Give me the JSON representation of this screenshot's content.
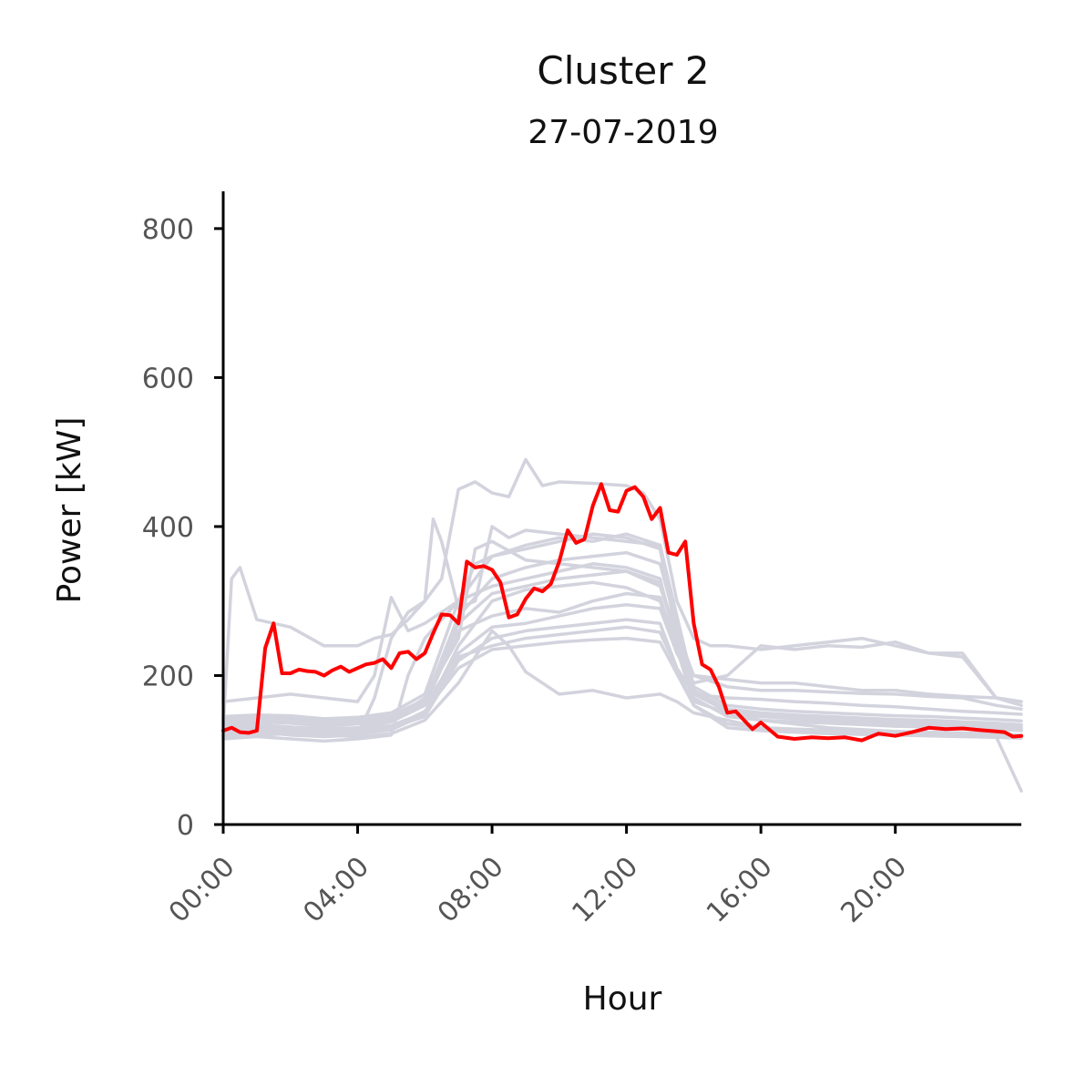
{
  "chart_data": {
    "type": "line",
    "title": "Cluster 2",
    "subtitle": "27-07-2019",
    "xlabel": "Hour",
    "ylabel": "Power [kW]",
    "x_range_hours": [
      0,
      23.75
    ],
    "ylim": [
      0,
      850
    ],
    "x_ticks": [
      "00:00",
      "04:00",
      "08:00",
      "12:00",
      "16:00",
      "20:00"
    ],
    "y_ticks": [
      "0",
      "200",
      "400",
      "600",
      "800"
    ],
    "grid": false,
    "colors": {
      "highlight": "#ff0000",
      "background_series": "#d3d3de",
      "axis": "#000000",
      "tick_label": "#555555"
    },
    "highlight_series": {
      "x_hours": [
        0.0,
        0.25,
        0.5,
        0.75,
        1.0,
        1.25,
        1.5,
        1.75,
        2.0,
        2.25,
        2.5,
        2.75,
        3.0,
        3.25,
        3.5,
        3.75,
        4.0,
        4.25,
        4.5,
        4.75,
        5.0,
        5.25,
        5.5,
        5.75,
        6.0,
        6.25,
        6.5,
        6.75,
        7.0,
        7.25,
        7.5,
        7.75,
        8.0,
        8.25,
        8.5,
        8.75,
        9.0,
        9.25,
        9.5,
        9.75,
        10.0,
        10.25,
        10.5,
        10.75,
        11.0,
        11.25,
        11.5,
        11.75,
        12.0,
        12.25,
        12.5,
        12.75,
        13.0,
        13.25,
        13.5,
        13.75,
        14.0,
        14.25,
        14.5,
        14.75,
        15.0,
        15.25,
        15.5,
        15.75,
        16.0,
        16.5,
        17.0,
        17.5,
        18.0,
        18.5,
        19.0,
        19.5,
        20.0,
        20.5,
        21.0,
        21.5,
        22.0,
        22.5,
        23.0,
        23.25,
        23.5,
        23.75
      ],
      "values": [
        126,
        130,
        124,
        123,
        126,
        237,
        270,
        203,
        203,
        208,
        206,
        205,
        200,
        207,
        212,
        205,
        210,
        215,
        217,
        222,
        210,
        230,
        232,
        222,
        230,
        257,
        282,
        281,
        270,
        353,
        345,
        347,
        342,
        325,
        278,
        282,
        303,
        317,
        313,
        323,
        353,
        395,
        378,
        383,
        428,
        457,
        422,
        420,
        448,
        453,
        440,
        410,
        425,
        365,
        362,
        380,
        270,
        215,
        208,
        185,
        150,
        152,
        140,
        128,
        137,
        118,
        115,
        117,
        116,
        117,
        113,
        122,
        119,
        124,
        130,
        128,
        129,
        127,
        125,
        124,
        118,
        119
      ]
    },
    "background_series": [
      {
        "x_hours": [
          0,
          0.25,
          0.5,
          1,
          2,
          3,
          4,
          4.5,
          5,
          5.5,
          6,
          6.5,
          7,
          7.5,
          8,
          8.5,
          9,
          9.5,
          10,
          11,
          12,
          12.5,
          13,
          13.5,
          14,
          14.5,
          15,
          16,
          17,
          18,
          19,
          20,
          21,
          22,
          23,
          23.75
        ],
        "values": [
          130,
          330,
          345,
          275,
          265,
          240,
          240,
          250,
          255,
          275,
          300,
          330,
          450,
          460,
          445,
          440,
          490,
          455,
          460,
          458,
          455,
          445,
          410,
          300,
          250,
          240,
          240,
          235,
          240,
          245,
          250,
          240,
          230,
          225,
          170,
          165
        ]
      },
      {
        "x_hours": [
          0,
          1,
          2,
          3,
          4,
          4.5,
          5,
          5.5,
          6,
          6.25,
          6.5,
          7,
          7.5,
          8,
          8.5,
          9,
          10,
          11,
          12,
          13,
          13.5,
          14,
          15,
          16,
          17,
          18,
          19,
          20,
          21,
          22,
          23,
          23.75
        ],
        "values": [
          120,
          125,
          120,
          118,
          120,
          170,
          250,
          285,
          300,
          410,
          380,
          290,
          300,
          400,
          385,
          395,
          390,
          385,
          380,
          375,
          260,
          200,
          185,
          180,
          180,
          178,
          176,
          175,
          172,
          170,
          160,
          155
        ]
      },
      {
        "x_hours": [
          0,
          1,
          2,
          3,
          4,
          5,
          5.5,
          6,
          7,
          7.5,
          8,
          9,
          10,
          11,
          12,
          13,
          13.5,
          14,
          15,
          16,
          18,
          20,
          21,
          22,
          23,
          23.75
        ],
        "values": [
          115,
          118,
          115,
          112,
          115,
          120,
          200,
          250,
          300,
          350,
          360,
          370,
          380,
          390,
          385,
          370,
          250,
          180,
          150,
          140,
          130,
          125,
          123,
          120,
          118,
          45
        ]
      },
      {
        "x_hours": [
          0,
          1,
          2,
          3,
          4,
          4.5,
          5,
          5.5,
          6,
          7,
          8,
          9,
          10,
          11,
          12,
          13,
          13.5,
          14,
          15,
          16,
          17,
          18,
          19,
          20,
          21,
          22,
          23,
          23.75
        ],
        "values": [
          165,
          170,
          175,
          170,
          165,
          200,
          305,
          260,
          270,
          300,
          320,
          330,
          340,
          350,
          345,
          330,
          240,
          200,
          195,
          190,
          190,
          185,
          180,
          180,
          175,
          172,
          170,
          165
        ]
      },
      {
        "x_hours": [
          0,
          1,
          2,
          3,
          4,
          5,
          6,
          7,
          8,
          9,
          10,
          11,
          12,
          13,
          13.5,
          14,
          14.5,
          15,
          16,
          17,
          18,
          19,
          20,
          21,
          22,
          23,
          23.75
        ],
        "values": [
          140,
          135,
          140,
          138,
          140,
          145,
          160,
          230,
          265,
          270,
          280,
          290,
          295,
          290,
          230,
          190,
          195,
          200,
          240,
          235,
          240,
          238,
          245,
          230,
          230,
          170,
          160
        ]
      },
      {
        "x_hours": [
          0,
          1,
          2,
          3,
          4,
          5,
          6,
          7,
          8,
          9,
          10,
          11,
          12,
          13,
          13.5,
          14,
          15,
          16,
          17,
          18,
          19,
          20,
          21,
          22,
          23,
          23.75
        ],
        "values": [
          125,
          128,
          130,
          126,
          125,
          130,
          145,
          220,
          250,
          260,
          265,
          270,
          275,
          270,
          210,
          175,
          170,
          168,
          165,
          163,
          160,
          158,
          155,
          152,
          150,
          148
        ]
      },
      {
        "x_hours": [
          0,
          1,
          2,
          3,
          4,
          5,
          6,
          7,
          8,
          8.5,
          9,
          10,
          11,
          12,
          13,
          13.5,
          14,
          15,
          16,
          17,
          18,
          19,
          20,
          21,
          22,
          23,
          23.75
        ],
        "values": [
          118,
          120,
          122,
          120,
          118,
          122,
          140,
          190,
          260,
          240,
          205,
          175,
          180,
          170,
          175,
          165,
          150,
          140,
          130,
          128,
          127,
          126,
          125,
          124,
          123,
          122,
          120
        ]
      },
      {
        "x_hours": [
          0,
          1,
          2,
          3,
          4,
          5,
          6,
          7,
          7.5,
          8,
          9,
          10,
          11,
          12,
          13,
          14,
          15,
          16,
          17,
          18,
          19,
          20,
          21,
          22,
          23,
          23.75
        ],
        "values": [
          135,
          138,
          136,
          132,
          135,
          140,
          170,
          250,
          370,
          380,
          355,
          350,
          345,
          340,
          320,
          180,
          150,
          145,
          142,
          140,
          138,
          136,
          135,
          133,
          130,
          128
        ]
      },
      {
        "x_hours": [
          0,
          1,
          2,
          3,
          4,
          5,
          6,
          7,
          8,
          9,
          10,
          11,
          12,
          13,
          14,
          15,
          16,
          17,
          18,
          19,
          20,
          21,
          22,
          23,
          23.75
        ],
        "values": [
          128,
          130,
          129,
          126,
          128,
          133,
          150,
          240,
          300,
          315,
          320,
          325,
          318,
          300,
          170,
          145,
          140,
          138,
          136,
          134,
          132,
          131,
          130,
          128,
          126
        ]
      },
      {
        "x_hours": [
          0,
          1,
          2,
          3,
          4,
          5,
          6,
          7,
          8,
          9,
          10,
          11,
          12,
          13,
          14,
          15,
          16,
          17,
          18,
          19,
          20,
          21,
          22,
          23,
          23.75
        ],
        "values": [
          132,
          134,
          131,
          128,
          130,
          138,
          160,
          260,
          280,
          290,
          285,
          300,
          310,
          305,
          165,
          150,
          145,
          143,
          141,
          139,
          137,
          136,
          134,
          132,
          130
        ]
      },
      {
        "x_hours": [
          0,
          1,
          2,
          3,
          4,
          5,
          6,
          7,
          8,
          9,
          10,
          11,
          12,
          13,
          14,
          15,
          16,
          17,
          18,
          19,
          20,
          21,
          22,
          23,
          23.75
        ],
        "values": [
          122,
          124,
          123,
          120,
          122,
          127,
          148,
          225,
          240,
          250,
          255,
          260,
          265,
          258,
          160,
          135,
          130,
          128,
          126,
          124,
          123,
          122,
          121,
          120,
          119
        ]
      },
      {
        "x_hours": [
          0,
          1,
          2,
          3,
          4,
          5,
          6,
          7,
          8,
          9,
          10,
          11,
          12,
          13,
          14,
          15,
          16,
          17,
          18,
          19,
          20,
          21,
          22,
          23,
          23.75
        ],
        "values": [
          138,
          140,
          139,
          135,
          137,
          142,
          165,
          280,
          330,
          345,
          355,
          360,
          365,
          350,
          180,
          155,
          150,
          147,
          145,
          143,
          141,
          140,
          138,
          136,
          134
        ]
      },
      {
        "x_hours": [
          0,
          1,
          2,
          3,
          4,
          5,
          6,
          7,
          8,
          9,
          10,
          11,
          12,
          13,
          14,
          15,
          16,
          17,
          18,
          19,
          20,
          21,
          22,
          23,
          23.75
        ],
        "values": [
          145,
          147,
          146,
          142,
          144,
          150,
          175,
          300,
          360,
          375,
          385,
          380,
          390,
          375,
          185,
          160,
          155,
          152,
          150,
          148,
          146,
          145,
          143,
          141,
          139
        ]
      },
      {
        "x_hours": [
          0,
          1,
          2,
          3,
          4,
          5,
          6,
          7,
          8,
          9,
          10,
          11,
          12,
          13,
          14,
          15,
          16,
          17,
          18,
          19,
          20,
          21,
          22,
          23,
          23.75
        ],
        "values": [
          126,
          127,
          126,
          123,
          125,
          130,
          152,
          210,
          235,
          240,
          245,
          248,
          250,
          245,
          160,
          130,
          126,
          124,
          122,
          121,
          120,
          119,
          118,
          117,
          116
        ]
      },
      {
        "x_hours": [
          0,
          1,
          2,
          3,
          4,
          5,
          6,
          7,
          8,
          9,
          10,
          11,
          12,
          13,
          14,
          15,
          16,
          17,
          18,
          19,
          20,
          21,
          22,
          23,
          23.75
        ],
        "values": [
          142,
          144,
          143,
          139,
          141,
          146,
          168,
          270,
          310,
          320,
          330,
          335,
          340,
          325,
          175,
          152,
          148,
          146,
          144,
          142,
          140,
          139,
          137,
          135,
          133
        ]
      }
    ]
  }
}
